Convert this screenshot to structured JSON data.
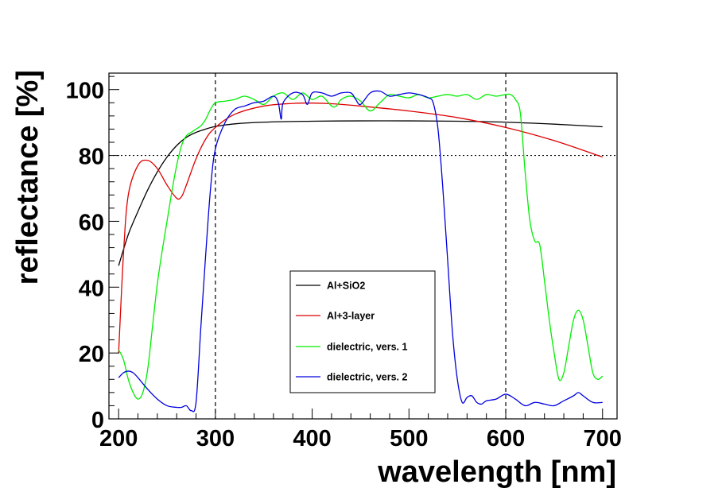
{
  "chart_data": {
    "type": "line",
    "title": "",
    "xlabel": "wavelength [nm]",
    "ylabel": "reflectance [%]",
    "xlim": [
      190,
      715
    ],
    "ylim": [
      0,
      105
    ],
    "xticks": [
      200,
      300,
      400,
      500,
      600,
      700
    ],
    "yticks": [
      0,
      20,
      40,
      60,
      80,
      100
    ],
    "xtick_labels": [
      "200",
      "300",
      "400",
      "500",
      "600",
      "700"
    ],
    "ytick_labels": [
      "0",
      "20",
      "40",
      "60",
      "80",
      "100"
    ],
    "reference_lines": [
      {
        "orientation": "vertical",
        "value": 300,
        "style": "dashed"
      },
      {
        "orientation": "vertical",
        "value": 600,
        "style": "dashed"
      },
      {
        "orientation": "horizontal",
        "value": 80,
        "style": "dotted"
      }
    ],
    "legend_position": "center-bottom",
    "series": [
      {
        "name": "Al+SiO2",
        "color": "#000000",
        "x": [
          200,
          210,
          220,
          230,
          240,
          250,
          260,
          270,
          280,
          290,
          300,
          320,
          350,
          400,
          450,
          500,
          550,
          600,
          650,
          700
        ],
        "y": [
          46.5,
          56,
          63,
          69.5,
          75,
          79.5,
          83,
          85.5,
          87,
          88,
          88.8,
          89.6,
          90.1,
          90.4,
          90.5,
          90.5,
          90.4,
          90.1,
          89.5,
          88.7
        ]
      },
      {
        "name": "Al+3-layer",
        "color": "#dd0000",
        "x": [
          200,
          205,
          210,
          220,
          230,
          240,
          250,
          260,
          265,
          270,
          280,
          290,
          300,
          320,
          350,
          380,
          400,
          420,
          450,
          500,
          550,
          600,
          650,
          700
        ],
        "y": [
          20,
          50,
          68,
          77,
          78.5,
          76,
          71,
          67,
          67.5,
          71,
          79,
          85,
          88.5,
          92.5,
          95,
          95.8,
          95.9,
          95.7,
          95,
          93.5,
          91.5,
          88.5,
          84.5,
          79.5
        ]
      },
      {
        "name": "dielectric, vers. 1",
        "color": "#00ee00",
        "x": [
          200,
          205,
          210,
          215,
          220,
          225,
          230,
          235,
          240,
          245,
          250,
          255,
          260,
          265,
          270,
          275,
          280,
          285,
          290,
          295,
          300,
          310,
          320,
          330,
          340,
          350,
          360,
          370,
          380,
          390,
          400,
          410,
          420,
          425,
          430,
          440,
          450,
          460,
          470,
          480,
          490,
          500,
          510,
          520,
          530,
          540,
          550,
          560,
          570,
          580,
          590,
          600,
          605,
          610,
          615,
          620,
          625,
          630,
          635,
          640,
          645,
          650,
          655,
          660,
          665,
          670,
          675,
          680,
          685,
          690,
          695,
          700
        ],
        "y": [
          21,
          18,
          12,
          8,
          6,
          8,
          15,
          28,
          41,
          51,
          60,
          69,
          77,
          83,
          86,
          87,
          88,
          89,
          91,
          94,
          96,
          96.5,
          97,
          98,
          97,
          95.5,
          98,
          99,
          97,
          99,
          97,
          98,
          95,
          95,
          97,
          98,
          96.5,
          93.5,
          96,
          98.5,
          98,
          97.5,
          98.5,
          97.5,
          98,
          98.5,
          98,
          98.5,
          97,
          98.5,
          98,
          98.5,
          98.5,
          97,
          93,
          75,
          60,
          54,
          53,
          42,
          30,
          20,
          12,
          14,
          22,
          30,
          33,
          30,
          22,
          14,
          12,
          13
        ]
      },
      {
        "name": "dielectric, vers. 2",
        "color": "#0000dd",
        "x": [
          200,
          205,
          210,
          215,
          220,
          230,
          240,
          250,
          260,
          265,
          270,
          275,
          280,
          285,
          290,
          295,
          300,
          310,
          320,
          330,
          340,
          350,
          360,
          365,
          368,
          370,
          380,
          390,
          395,
          400,
          410,
          420,
          430,
          440,
          445,
          450,
          460,
          470,
          480,
          490,
          500,
          510,
          520,
          525,
          530,
          535,
          540,
          545,
          550,
          555,
          560,
          565,
          570,
          575,
          580,
          590,
          600,
          610,
          620,
          630,
          640,
          650,
          660,
          670,
          675,
          680,
          690,
          700
        ],
        "y": [
          12.5,
          14,
          14.5,
          14,
          12.5,
          9,
          6,
          4,
          3.5,
          3.5,
          4,
          2.5,
          5,
          28,
          50,
          70,
          82,
          90,
          94,
          95,
          96,
          96.5,
          98,
          96,
          91,
          96,
          99,
          98.5,
          95.5,
          99,
          99,
          98,
          99,
          99,
          97,
          95.5,
          99,
          99.5,
          98,
          98.5,
          99,
          98.5,
          97.5,
          96,
          88,
          70,
          48,
          26,
          12,
          5,
          6.5,
          7,
          5,
          4.5,
          5.5,
          6,
          7.5,
          6,
          4,
          5,
          4.5,
          4,
          5.5,
          7,
          8,
          7,
          5,
          5
        ]
      }
    ]
  }
}
